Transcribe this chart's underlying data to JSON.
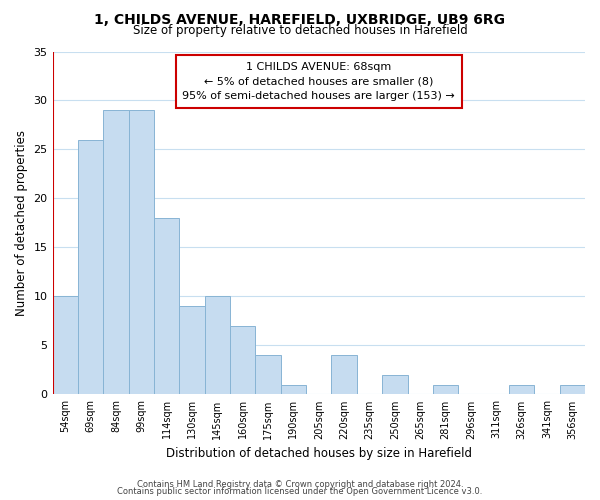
{
  "title": "1, CHILDS AVENUE, HAREFIELD, UXBRIDGE, UB9 6RG",
  "subtitle": "Size of property relative to detached houses in Harefield",
  "xlabel": "Distribution of detached houses by size in Harefield",
  "ylabel": "Number of detached properties",
  "bar_labels": [
    "54sqm",
    "69sqm",
    "84sqm",
    "99sqm",
    "114sqm",
    "130sqm",
    "145sqm",
    "160sqm",
    "175sqm",
    "190sqm",
    "205sqm",
    "220sqm",
    "235sqm",
    "250sqm",
    "265sqm",
    "281sqm",
    "296sqm",
    "311sqm",
    "326sqm",
    "341sqm",
    "356sqm"
  ],
  "bar_values": [
    10,
    26,
    29,
    29,
    18,
    9,
    10,
    7,
    4,
    1,
    0,
    4,
    0,
    2,
    0,
    1,
    0,
    0,
    1,
    0,
    1
  ],
  "bar_color": "#c6dcf0",
  "bar_edge_color": "#88b4d4",
  "highlight_line_color": "#cc0000",
  "ylim": [
    0,
    35
  ],
  "yticks": [
    0,
    5,
    10,
    15,
    20,
    25,
    30,
    35
  ],
  "annotation_title": "1 CHILDS AVENUE: 68sqm",
  "annotation_line1": "← 5% of detached houses are smaller (8)",
  "annotation_line2": "95% of semi-detached houses are larger (153) →",
  "annotation_box_color": "#ffffff",
  "annotation_border_color": "#cc0000",
  "footer_line1": "Contains HM Land Registry data © Crown copyright and database right 2024.",
  "footer_line2": "Contains public sector information licensed under the Open Government Licence v3.0.",
  "background_color": "#ffffff",
  "grid_color": "#c8dff0"
}
